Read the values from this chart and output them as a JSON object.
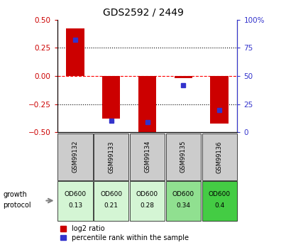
{
  "title": "GDS2592 / 2449",
  "samples": [
    "GSM99132",
    "GSM99133",
    "GSM99134",
    "GSM99135",
    "GSM99136"
  ],
  "log2_ratios": [
    0.42,
    -0.38,
    -0.52,
    -0.02,
    -0.42
  ],
  "percentile_ranks": [
    82,
    10,
    9,
    42,
    20
  ],
  "bar_color": "#cc0000",
  "blue_color": "#3333cc",
  "ylim_left": [
    -0.5,
    0.5
  ],
  "ylim_right": [
    0,
    100
  ],
  "yticks_left": [
    -0.5,
    -0.25,
    0,
    0.25,
    0.5
  ],
  "yticks_right": [
    0,
    25,
    50,
    75,
    100
  ],
  "protocol_label": "growth protocol",
  "protocol_values_line1": [
    "OD600",
    "OD600",
    "OD600",
    "OD600",
    "OD600"
  ],
  "protocol_values_line2": [
    "0.13",
    "0.21",
    "0.28",
    "0.34",
    "0.4"
  ],
  "protocol_colors": [
    "#d4f5d4",
    "#d4f5d4",
    "#d4f5d4",
    "#90e090",
    "#44cc44"
  ],
  "legend_red": "log2 ratio",
  "legend_blue": "percentile rank within the sample",
  "bar_width": 0.5
}
